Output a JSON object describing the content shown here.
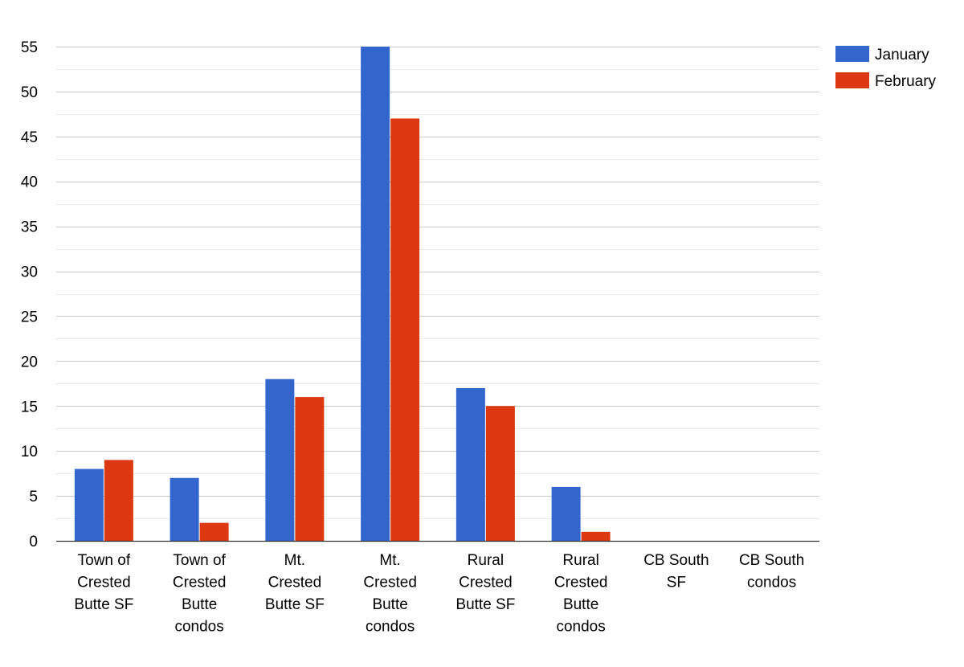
{
  "chart_data": {
    "type": "bar",
    "title": "",
    "xlabel": "",
    "ylabel": "",
    "ylim": [
      0,
      55
    ],
    "yticks": [
      0,
      5,
      10,
      15,
      20,
      25,
      30,
      35,
      40,
      45,
      50,
      55
    ],
    "minor_gridlines": true,
    "legend_position": "top-right",
    "categories": [
      [
        "Town of",
        "Crested",
        "Butte SF"
      ],
      [
        "Town of",
        "Crested",
        "Butte",
        "condos"
      ],
      [
        "Mt.",
        "Crested",
        "Butte SF"
      ],
      [
        "Mt.",
        "Crested",
        "Butte",
        "condos"
      ],
      [
        "Rural",
        "Crested",
        "Butte SF"
      ],
      [
        "Rural",
        "Crested",
        "Butte",
        "condos"
      ],
      [
        "CB South",
        "SF"
      ],
      [
        "CB South",
        "condos"
      ]
    ],
    "series": [
      {
        "name": "January",
        "color": "#3366cc",
        "values": [
          8,
          7,
          18,
          55,
          17,
          6,
          0,
          0
        ]
      },
      {
        "name": "February",
        "color": "#dc3912",
        "values": [
          9,
          2,
          16,
          47,
          15,
          1,
          0,
          0
        ]
      }
    ]
  },
  "colors": {
    "gridline": "#cccccc",
    "minor_gridline": "#ebebeb",
    "axis": "#333333"
  }
}
